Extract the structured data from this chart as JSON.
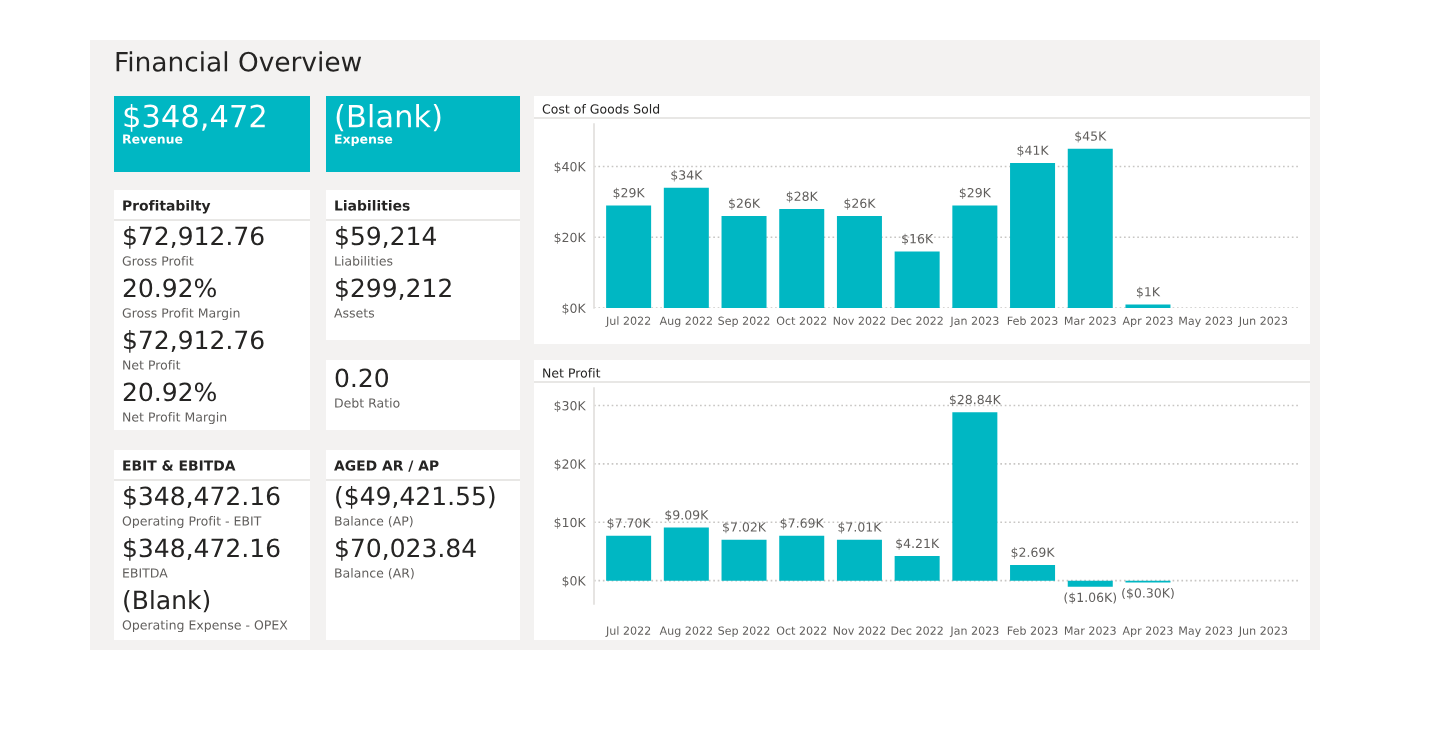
{
  "chart_data": [
    {
      "type": "other",
      "title": "Financial Overview"
    },
    {
      "type": "other",
      "color": "#00b7c3",
      "annotations": [
        "$348,472",
        "Revenue"
      ]
    },
    {
      "type": "other",
      "color": "#00b7c3",
      "annotations": [
        "(Blank)",
        "Expense"
      ]
    },
    {
      "type": "other",
      "title": "Profitabilty",
      "annotations": [
        "$72,912.76",
        "Gross Profit",
        "20.92%",
        "Gross Profit Margin",
        "$72,912.76",
        "Net Profit",
        "20.92%",
        "Net Profit Margin"
      ]
    },
    {
      "type": "other",
      "title": "Liabilities",
      "annotations": [
        "$59,214",
        "Liabilities",
        "$299,212",
        "Assets"
      ]
    },
    {
      "type": "other",
      "annotations": [
        "0.20",
        "Debt Ratio"
      ]
    },
    {
      "type": "other",
      "title": "EBIT & EBITDA",
      "annotations": [
        "$348,472.16",
        "Operating Profit - EBIT",
        "$348,472.16",
        "EBITDA",
        "(Blank)",
        "Operating Expense - OPEX"
      ]
    },
    {
      "type": "other",
      "title": "AGED AR / AP",
      "annotations": [
        "($49,421.55)",
        "Balance (AP)",
        "$70,023.84",
        "Balance (AR)"
      ]
    },
    {
      "type": "bar",
      "title": "Cost of Goods Sold",
      "categories": [
        "Jul 2022",
        "Aug 2022",
        "Sep 2022",
        "Oct 2022",
        "Nov 2022",
        "Dec 2022",
        "Jan 2023",
        "Feb 2023",
        "Mar 2023",
        "Apr 2023",
        "May 2023",
        "Jun 2023"
      ],
      "values": [
        29,
        34,
        26,
        28,
        26,
        16,
        29,
        41,
        45,
        1,
        null,
        null
      ],
      "value_labels": [
        "$29K",
        "$34K",
        "$26K",
        "$28K",
        "$26K",
        "$16K",
        "$29K",
        "$41K",
        "$45K",
        "$1K",
        null,
        null
      ],
      "color": "#00b7c3",
      "ylim": [
        0,
        52
      ],
      "yticks": [
        {
          "value": 0,
          "label": "$0K"
        },
        {
          "value": 20,
          "label": "$20K"
        },
        {
          "value": 40,
          "label": "$40K"
        }
      ],
      "grid": "y",
      "legend": false
    },
    {
      "type": "bar",
      "title": "Net Profit",
      "categories": [
        "Jul 2022",
        "Aug 2022",
        "Sep 2022",
        "Oct 2022",
        "Nov 2022",
        "Dec 2022",
        "Jan 2023",
        "Feb 2023",
        "Mar 2023",
        "Apr 2023",
        "May 2023",
        "Jun 2023"
      ],
      "values": [
        7.7,
        9.09,
        7.02,
        7.69,
        7.01,
        4.21,
        28.84,
        2.69,
        -1.06,
        -0.3,
        null,
        null
      ],
      "value_labels": [
        "$7.70K",
        "$9.09K",
        "$7.02K",
        "$7.69K",
        "$7.01K",
        "$4.21K",
        "$28.84K",
        "$2.69K",
        "($1.06K)",
        "($0.30K)",
        null,
        null
      ],
      "color": "#00b7c3",
      "ylim": [
        -4,
        33
      ],
      "yticks": [
        {
          "value": 0,
          "label": "$0K"
        },
        {
          "value": 10,
          "label": "$10K"
        },
        {
          "value": 20,
          "label": "$20K"
        },
        {
          "value": 30,
          "label": "$30K"
        }
      ],
      "grid": "y",
      "legend": false
    }
  ]
}
